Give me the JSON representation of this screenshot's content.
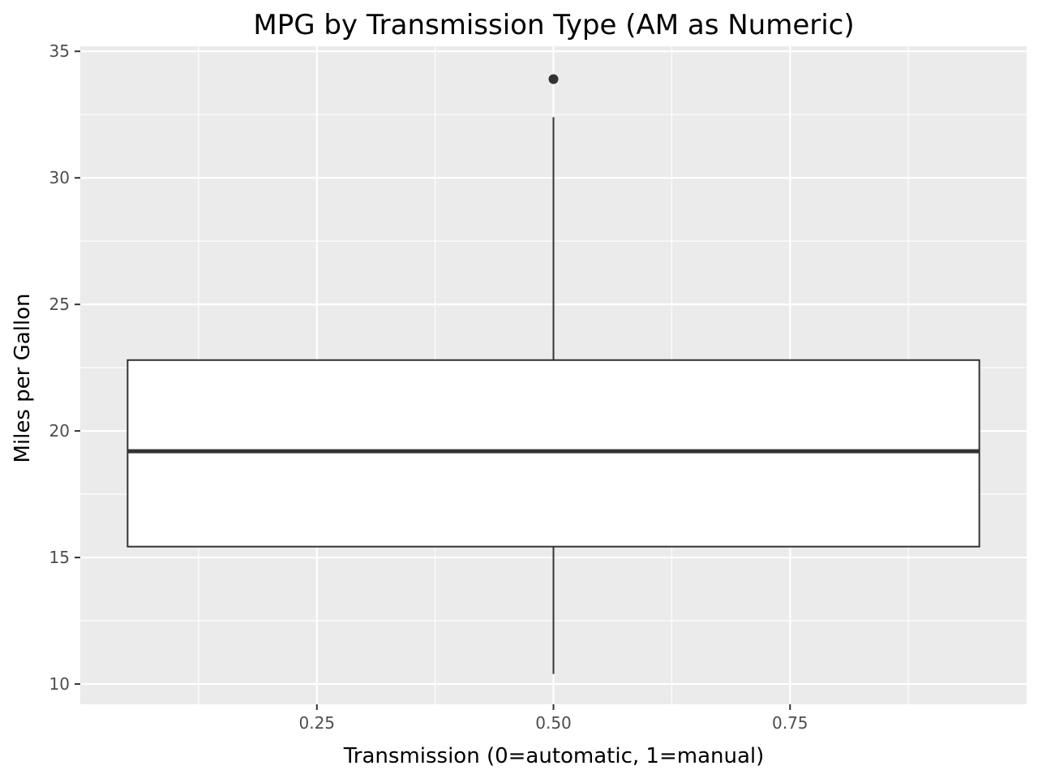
{
  "chart_data": {
    "type": "box",
    "title": "MPG by Transmission Type (AM as Numeric)",
    "xlabel": "Transmission (0=automatic, 1=manual)",
    "ylabel": "Miles per Gallon",
    "xlim": [
      0.0,
      1.0
    ],
    "ylim": [
      9.2,
      35.2
    ],
    "x_ticks": [
      {
        "value": 0.25,
        "label": "0.25"
      },
      {
        "value": 0.5,
        "label": "0.50"
      },
      {
        "value": 0.75,
        "label": "0.75"
      }
    ],
    "y_ticks": [
      {
        "value": 10,
        "label": "10"
      },
      {
        "value": 15,
        "label": "15"
      },
      {
        "value": 20,
        "label": "20"
      },
      {
        "value": 25,
        "label": "25"
      },
      {
        "value": 30,
        "label": "30"
      },
      {
        "value": 35,
        "label": "35"
      }
    ],
    "boxes": [
      {
        "x": 0.5,
        "x_range": [
          0.05,
          0.95
        ],
        "whisker_low": 10.4,
        "q1": 15.43,
        "median": 19.2,
        "q3": 22.8,
        "whisker_high": 32.4,
        "outliers": [
          33.9
        ]
      }
    ],
    "grid": true,
    "legend": "none",
    "colors": {
      "panel_background": "#ebebeb",
      "grid": "#ffffff",
      "box_fill": "#ffffff",
      "box_stroke": "#333333",
      "tick_label": "#4d4d4d",
      "tick_mark": "#333333",
      "text": "#000000"
    }
  }
}
